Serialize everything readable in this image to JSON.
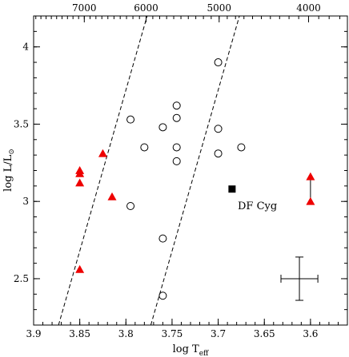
{
  "chart_data": {
    "type": "scatter",
    "xlabel": "log T",
    "xlabel_sub": "eff",
    "ylabel": "log L/L",
    "ylabel_sub": "⊙",
    "xlim": [
      3.9,
      3.56
    ],
    "ylim": [
      2.2,
      4.2
    ],
    "x_ticks": [
      3.9,
      3.85,
      3.8,
      3.75,
      3.7,
      3.65,
      3.6
    ],
    "x_tick_labels": [
      "3.9",
      "3.85",
      "3.8",
      "3.75",
      "3.7",
      "3.65",
      "3.6"
    ],
    "y_ticks": [
      2.5,
      3,
      3.5,
      4
    ],
    "y_tick_labels": [
      "2.5",
      "3",
      "3.5",
      "4"
    ],
    "top_axis_ticks_temperature": [
      7000,
      6000,
      5000,
      4000
    ],
    "top_axis_tick_labels": [
      "7000",
      "6000",
      "5000",
      "4000"
    ],
    "series": [
      {
        "marker": "open-circle",
        "color": "#000000",
        "points": [
          [
            3.7,
            3.9
          ],
          [
            3.795,
            3.53
          ],
          [
            3.76,
            3.48
          ],
          [
            3.745,
            3.62
          ],
          [
            3.745,
            3.54
          ],
          [
            3.78,
            3.35
          ],
          [
            3.745,
            3.35
          ],
          [
            3.745,
            3.26
          ],
          [
            3.7,
            3.47
          ],
          [
            3.7,
            3.31
          ],
          [
            3.675,
            3.35
          ],
          [
            3.795,
            2.97
          ],
          [
            3.76,
            2.76
          ],
          [
            3.76,
            2.39
          ]
        ]
      },
      {
        "marker": "filled-triangle",
        "color": "#ee0000",
        "points": [
          [
            3.85,
            3.2
          ],
          [
            3.85,
            3.18
          ],
          [
            3.85,
            3.12
          ],
          [
            3.825,
            3.31
          ],
          [
            3.815,
            3.03
          ],
          [
            3.85,
            2.56
          ],
          [
            3.6,
            3.16
          ],
          [
            3.6,
            3.0
          ]
        ]
      },
      {
        "marker": "filled-square",
        "color": "#000000",
        "points": [
          [
            3.685,
            3.08
          ]
        ]
      }
    ],
    "connector": {
      "from": [
        3.6,
        3.16
      ],
      "to": [
        3.6,
        3.0
      ]
    },
    "dashed_lines": [
      {
        "from": [
          3.873,
          2.2
        ],
        "to": [
          3.777,
          4.2
        ]
      },
      {
        "from": [
          3.773,
          2.2
        ],
        "to": [
          3.677,
          4.2
        ]
      }
    ],
    "error_bar": {
      "center": [
        3.612,
        2.5
      ],
      "x_err": 0.02,
      "y_err": 0.14
    },
    "annotations": [
      {
        "text": "DF Cyg",
        "anchor": [
          3.685,
          3.08
        ]
      }
    ]
  }
}
